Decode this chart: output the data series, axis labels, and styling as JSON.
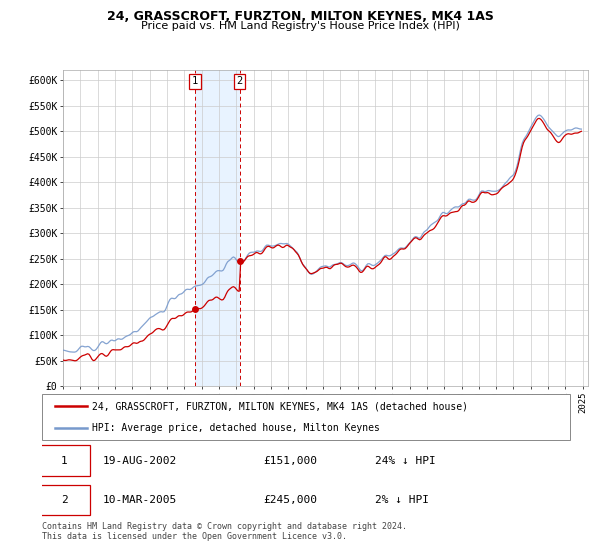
{
  "title1": "24, GRASSCROFT, FURZTON, MILTON KEYNES, MK4 1AS",
  "title2": "Price paid vs. HM Land Registry's House Price Index (HPI)",
  "ylabel_ticks": [
    "£0",
    "£50K",
    "£100K",
    "£150K",
    "£200K",
    "£250K",
    "£300K",
    "£350K",
    "£400K",
    "£450K",
    "£500K",
    "£550K",
    "£600K"
  ],
  "ytick_vals": [
    0,
    50000,
    100000,
    150000,
    200000,
    250000,
    300000,
    350000,
    400000,
    450000,
    500000,
    550000,
    600000
  ],
  "ylim": [
    0,
    620000
  ],
  "sale1_year": 2002.63,
  "sale1_price": 151000,
  "sale2_year": 2005.19,
  "sale2_price": 245000,
  "legend_line1": "24, GRASSCROFT, FURZTON, MILTON KEYNES, MK4 1AS (detached house)",
  "legend_line2": "HPI: Average price, detached house, Milton Keynes",
  "table_row1": [
    "1",
    "19-AUG-2002",
    "£151,000",
    "24% ↓ HPI"
  ],
  "table_row2": [
    "2",
    "10-MAR-2005",
    "£245,000",
    "2% ↓ HPI"
  ],
  "footer": "Contains HM Land Registry data © Crown copyright and database right 2024.\nThis data is licensed under the Open Government Licence v3.0.",
  "hpi_color": "#7799cc",
  "sale_color": "#cc0000",
  "shade_color": "#ddeeff",
  "grid_color": "#cccccc",
  "box_color": "#cc0000"
}
